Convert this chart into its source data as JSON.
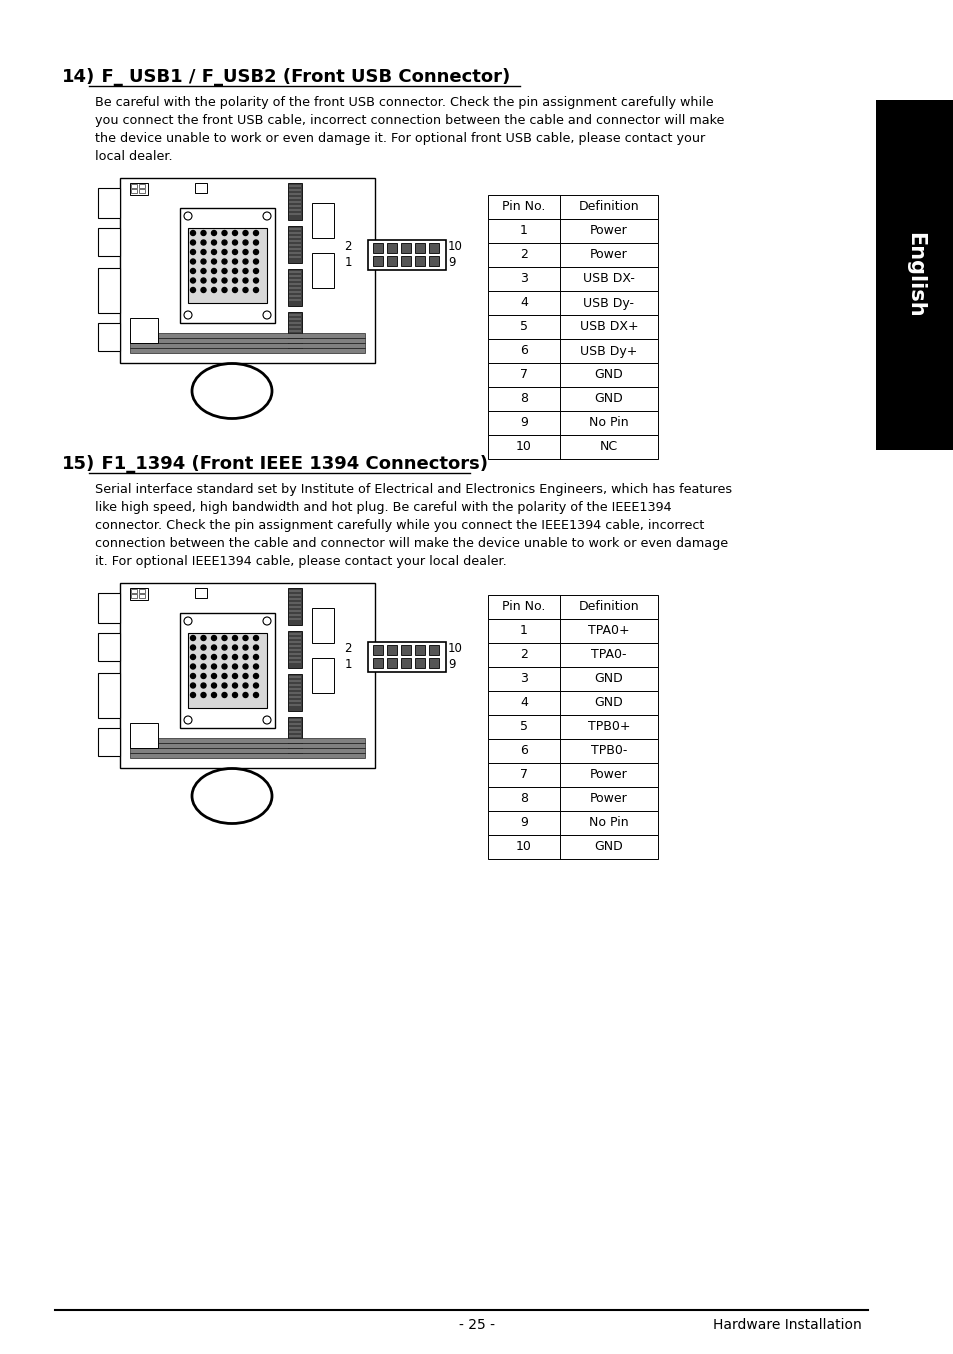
{
  "page_bg": "#ffffff",
  "sidebar_bg": "#000000",
  "sidebar_text": "English",
  "section1_number": "14)",
  "section1_title": "  F_ USB1 / F_USB2 (Front USB Connector)",
  "section1_body_lines": [
    "Be careful with the polarity of the front USB connector. Check the pin assignment carefully while",
    "you connect the front USB cable, incorrect connection between the cable and connector will make",
    "the device unable to work or even damage it. For optional front USB cable, please contact your",
    "local dealer."
  ],
  "table1_headers": [
    "Pin No.",
    "Definition"
  ],
  "table1_rows": [
    [
      "1",
      "Power"
    ],
    [
      "2",
      "Power"
    ],
    [
      "3",
      "USB DX-"
    ],
    [
      "4",
      "USB Dy-"
    ],
    [
      "5",
      "USB DX+"
    ],
    [
      "6",
      "USB Dy+"
    ],
    [
      "7",
      "GND"
    ],
    [
      "8",
      "GND"
    ],
    [
      "9",
      "No Pin"
    ],
    [
      "10",
      "NC"
    ]
  ],
  "section2_number": "15)",
  "section2_title": "  F1_1394 (Front IEEE 1394 Connectors)",
  "section2_body_lines": [
    "Serial interface standard set by Institute of Electrical and Electronics Engineers, which has features",
    "like high speed, high bandwidth and hot plug. Be careful with the polarity of the IEEE1394",
    "connector. Check the pin assignment carefully while you connect the IEEE1394 cable, incorrect",
    "connection between the cable and connector will make the device unable to work or even damage",
    "it. For optional IEEE1394 cable, please contact your local dealer."
  ],
  "table2_headers": [
    "Pin No.",
    "Definition"
  ],
  "table2_rows": [
    [
      "1",
      "TPA0+"
    ],
    [
      "2",
      "TPA0-"
    ],
    [
      "3",
      "GND"
    ],
    [
      "4",
      "GND"
    ],
    [
      "5",
      "TPB0+"
    ],
    [
      "6",
      "TPB0-"
    ],
    [
      "7",
      "Power"
    ],
    [
      "8",
      "Power"
    ],
    [
      "9",
      "No Pin"
    ],
    [
      "10",
      "GND"
    ]
  ],
  "footer_left": "- 25 -",
  "footer_right": "Hardware Installation"
}
